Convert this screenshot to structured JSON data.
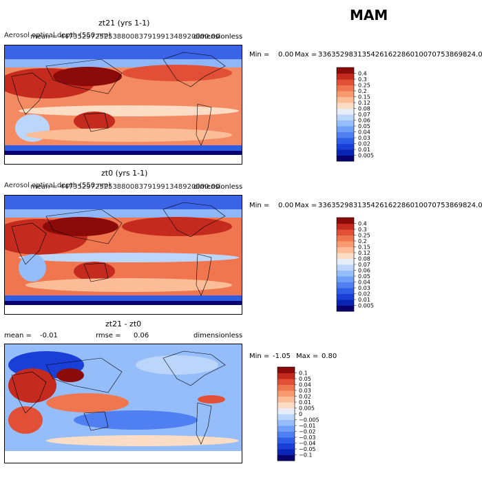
{
  "season": "MAM",
  "colors": {
    "aod_scale": [
      "#08006e",
      "#0a24b3",
      "#1a3fd6",
      "#2f5ee6",
      "#4f7ff0",
      "#6f9ef6",
      "#94bdfa",
      "#bcd6fb",
      "#e8eef8",
      "#fbdcc4",
      "#fbbd98",
      "#f89a6f",
      "#f0764f",
      "#e04f36",
      "#c42a1e",
      "#8b0a0a"
    ],
    "diff_scale": [
      "#08006e",
      "#0a24b3",
      "#1a3fd6",
      "#2f5ee6",
      "#4f7ff0",
      "#6f9ef6",
      "#94bdfa",
      "#bcd6fb",
      "#e8eef8",
      "#fbdcc4",
      "#fbbd98",
      "#f89a6f",
      "#f0764f",
      "#e04f36",
      "#c42a1e",
      "#8b0a0a"
    ]
  },
  "panels": [
    {
      "title": "zt21 (yrs 1-1)",
      "overlap_text_1": "Aerosol optical depth (550 nm)",
      "overlap_text_2": "mean = 4473529725253880083791991348920000.00",
      "right_label": "dimensionless",
      "min_label": "Min =",
      "min_value": "0.00",
      "max_label": "Max =",
      "max_value": "336352983135426162286010070753869824.00",
      "colorbar_ticks": [
        "0.4",
        "0.3",
        "0.25",
        "0.2",
        "0.15",
        "0.12",
        "0.08",
        "0.07",
        "0.06",
        "0.05",
        "0.04",
        "0.03",
        "0.02",
        "0.01",
        "0.005"
      ]
    },
    {
      "title": "zt0 (yrs 1-1)",
      "overlap_text_1": "Aerosol optical depth (550 nm)",
      "overlap_text_2": "mean = 4473529725253880083791991348920000.00",
      "right_label": "dimensionless",
      "min_label": "Min =",
      "min_value": "0.00",
      "max_label": "Max =",
      "max_value": "336352983135426162286010070753869824.00",
      "colorbar_ticks": [
        "0.4",
        "0.3",
        "0.25",
        "0.2",
        "0.15",
        "0.12",
        "0.08",
        "0.07",
        "0.06",
        "0.05",
        "0.04",
        "0.03",
        "0.02",
        "0.01",
        "0.005"
      ]
    },
    {
      "title": "zt21 - zt0",
      "mean_label": "mean =",
      "mean_value": "-0.01",
      "rmse_label": "rmse =",
      "rmse_value": "0.06",
      "right_label": "dimensionless",
      "min_label": "Min =",
      "min_value": "-1.05",
      "max_label": "Max =",
      "max_value": "0.80",
      "colorbar_ticks": [
        "0.1",
        "0.05",
        "0.04",
        "0.03",
        "0.02",
        "0.01",
        "0.005",
        "0",
        "−0.005",
        "−0.01",
        "−0.02",
        "−0.03",
        "−0.04",
        "−0.05",
        "−0.1"
      ]
    }
  ],
  "chart_data": [
    {
      "type": "heatmap",
      "title": "zt21 (yrs 1-1)",
      "variable": "Aerosol optical depth (550 nm)",
      "units": "dimensionless",
      "min": 0.0,
      "max": 3.36352983135426e+35,
      "color_levels": [
        0.005,
        0.01,
        0.02,
        0.03,
        0.04,
        0.05,
        0.06,
        0.07,
        0.08,
        0.12,
        0.15,
        0.2,
        0.25,
        0.3,
        0.4
      ]
    },
    {
      "type": "heatmap",
      "title": "zt0 (yrs 1-1)",
      "variable": "Aerosol optical depth (550 nm)",
      "units": "dimensionless",
      "min": 0.0,
      "max": 3.36352983135426e+35,
      "color_levels": [
        0.005,
        0.01,
        0.02,
        0.03,
        0.04,
        0.05,
        0.06,
        0.07,
        0.08,
        0.12,
        0.15,
        0.2,
        0.25,
        0.3,
        0.4
      ]
    },
    {
      "type": "heatmap",
      "title": "zt21 - zt0",
      "units": "dimensionless",
      "mean": -0.01,
      "rmse": 0.06,
      "min": -1.05,
      "max": 0.8,
      "color_levels": [
        -0.1,
        -0.05,
        -0.04,
        -0.03,
        -0.02,
        -0.01,
        -0.005,
        0,
        0.005,
        0.01,
        0.02,
        0.03,
        0.04,
        0.05,
        0.1
      ]
    }
  ]
}
